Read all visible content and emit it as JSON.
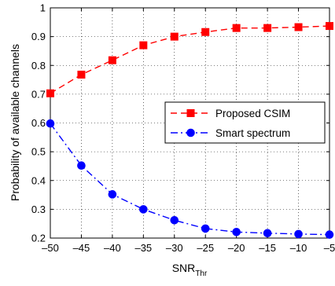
{
  "chart_data": {
    "type": "line",
    "xlabel": "SNR",
    "xlabel_sub": "Thr",
    "ylabel": "Probability of available channels",
    "xlim": [
      -50,
      -5
    ],
    "ylim": [
      0.2,
      1
    ],
    "xticks": [
      -50,
      -45,
      -40,
      -35,
      -30,
      -25,
      -20,
      -15,
      -10,
      -5
    ],
    "yticks": [
      0.2,
      0.3,
      0.4,
      0.5,
      0.6,
      0.7,
      0.8,
      0.9,
      1
    ],
    "grid": true,
    "legend_position": "center-right",
    "x": [
      -50,
      -45,
      -40,
      -35,
      -30,
      -25,
      -20,
      -15,
      -10,
      -5
    ],
    "series": [
      {
        "name": "Proposed CSIM",
        "color": "#ff0000",
        "marker": "square",
        "line_style": "dashed",
        "values": [
          0.703,
          0.768,
          0.818,
          0.87,
          0.9,
          0.916,
          0.93,
          0.93,
          0.933,
          0.937
        ]
      },
      {
        "name": "Smart spectrum",
        "color": "#0000ff",
        "marker": "circle",
        "line_style": "dash-dot",
        "values": [
          0.598,
          0.452,
          0.352,
          0.3,
          0.262,
          0.233,
          0.221,
          0.217,
          0.214,
          0.212
        ]
      }
    ]
  }
}
